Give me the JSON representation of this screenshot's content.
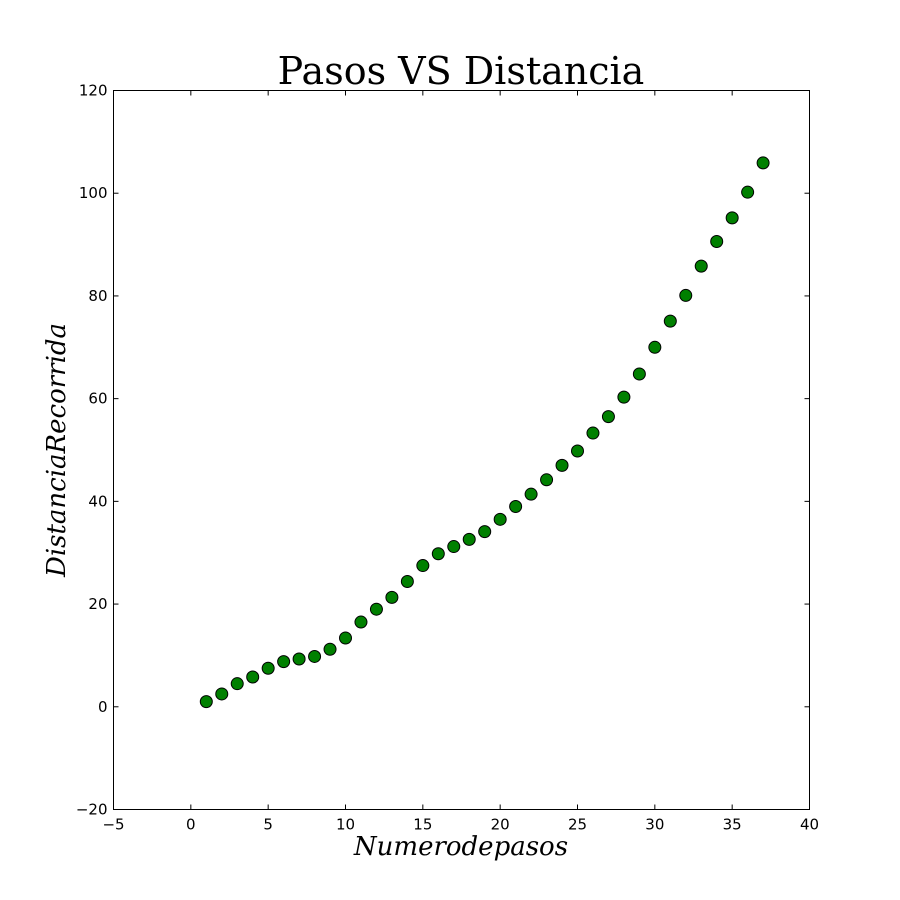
{
  "chart_data": {
    "type": "scatter",
    "title": "Pasos VS Distancia",
    "xlabel": "Numerodepasos",
    "ylabel": "DistanciaRecorrida",
    "xlim": [
      -5,
      40
    ],
    "ylim": [
      -20,
      120
    ],
    "xticks": [
      "−5",
      "0",
      "5",
      "10",
      "15",
      "20",
      "25",
      "30",
      "35",
      "40"
    ],
    "yticks": [
      "−20",
      "0",
      "20",
      "40",
      "60",
      "80",
      "100",
      "120"
    ],
    "grid": false,
    "marker_color": "#008000",
    "series": [
      {
        "x": [
          1,
          2,
          3,
          4,
          5,
          6,
          7,
          8,
          9,
          10,
          11,
          12,
          13,
          14,
          15,
          16,
          17,
          18,
          19,
          20,
          21,
          22,
          23,
          24,
          25,
          26,
          27,
          28,
          29,
          30,
          31,
          32,
          33,
          34,
          35,
          36,
          37
        ],
        "y": [
          1.0,
          2.5,
          4.5,
          5.8,
          7.5,
          8.8,
          9.3,
          9.8,
          11.2,
          13.4,
          16.5,
          19.0,
          21.3,
          24.4,
          27.5,
          29.8,
          31.2,
          32.6,
          34.1,
          36.5,
          39.0,
          41.4,
          44.2,
          47.0,
          49.8,
          53.3,
          56.5,
          60.3,
          64.8,
          70.0,
          75.1,
          80.1,
          85.8,
          90.6,
          95.2,
          100.2,
          105.9
        ]
      }
    ]
  }
}
